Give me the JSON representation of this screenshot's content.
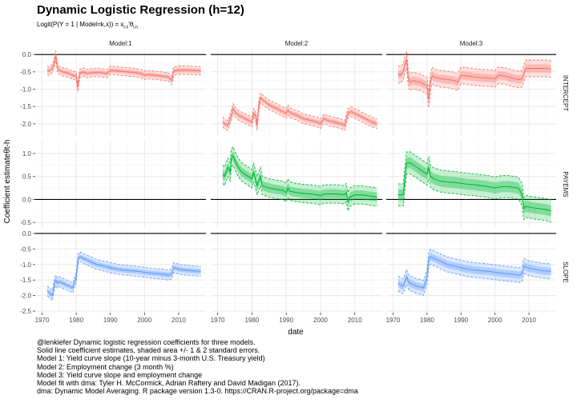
{
  "title": "Dynamic Logistic Regression (h=12)",
  "subtitle": "Logit(P(Y = 1 | Model=k,x)) = xt-h'θt-h",
  "caption": [
    "@lenkiefer Dynamic logistic regression coefficients for three models.",
    "Solid line coefficient estimates, shaded area +/- 1 & 2 standard errors.",
    "Model 1: Yield curve slope (10-year minus 3-month U.S. Treasury yield)",
    "Model 2: Employment change (3 month %)",
    "Model 3: Yield curve slope and employment change",
    "Model fit with dma: Tyler H. McCormick, Adrian Raftery and David Madigan (2017).",
    "dma: Dynamic Model Averaging. R package version 1.3-0. https://CRAN.R-project.org/package=dma"
  ],
  "chart_data": {
    "type": "line",
    "xlabel": "date",
    "ylabel": "Coefficient estimateθt-h",
    "columns": [
      "Model:1",
      "Model:2",
      "Model:3"
    ],
    "rows": [
      "INTERCEPT",
      "PAYEMS",
      "SLOPE"
    ],
    "xlim": [
      1968,
      2018
    ],
    "xticks": [
      1970,
      1980,
      1990,
      2000,
      2010
    ],
    "grid": true,
    "row_axes": [
      {
        "ylim": [
          -2.35,
          0.12
        ],
        "ticks": [
          0.0,
          -0.5,
          -1.0,
          -1.5,
          -2.0
        ],
        "labels": [
          "0.0",
          "-0.5",
          "-1.0",
          "-1.5",
          "-2.0"
        ],
        "zero_line": true
      },
      {
        "ylim": [
          -0.62,
          1.28
        ],
        "ticks": [
          1.0,
          0.5,
          0.0,
          -0.5
        ],
        "labels": [
          "1.0",
          "0.5",
          "0.0",
          "-0.5"
        ],
        "zero_line": true
      },
      {
        "ylim": [
          -2.55,
          0.05
        ],
        "ticks": [
          0.0,
          -0.5,
          -1.0,
          -1.5,
          -2.0,
          -2.5
        ],
        "labels": [
          "0.0",
          "-0.5",
          "-1.0",
          "-1.5",
          "-2.0",
          "-2.5"
        ],
        "zero_line": true
      }
    ],
    "colors": {
      "INTERCEPT": "#f8766d",
      "PAYEMS": "#00ba38",
      "SLOPE": "#619cff"
    },
    "series": [
      {
        "model": "Model:1",
        "row": "INTERCEPT",
        "se": 0.06,
        "points": [
          [
            1971.5,
            -0.45
          ],
          [
            1972,
            -0.48
          ],
          [
            1973,
            -0.4
          ],
          [
            1973.7,
            -0.2
          ],
          [
            1974,
            0.0
          ],
          [
            1974.5,
            -0.38
          ],
          [
            1975,
            -0.45
          ],
          [
            1976,
            -0.5
          ],
          [
            1977,
            -0.52
          ],
          [
            1978,
            -0.55
          ],
          [
            1979,
            -0.6
          ],
          [
            1980,
            -0.62
          ],
          [
            1980.5,
            -0.95
          ],
          [
            1981,
            -0.55
          ],
          [
            1982,
            -0.5
          ],
          [
            1983,
            -0.55
          ],
          [
            1985,
            -0.52
          ],
          [
            1987,
            -0.52
          ],
          [
            1989,
            -0.55
          ],
          [
            1990,
            -0.45
          ],
          [
            1992,
            -0.47
          ],
          [
            1995,
            -0.5
          ],
          [
            1997,
            -0.52
          ],
          [
            1999,
            -0.55
          ],
          [
            2000,
            -0.6
          ],
          [
            2001,
            -0.58
          ],
          [
            2003,
            -0.6
          ],
          [
            2005,
            -0.62
          ],
          [
            2007,
            -0.65
          ],
          [
            2008,
            -0.75
          ],
          [
            2008.5,
            -0.48
          ],
          [
            2010,
            -0.45
          ],
          [
            2012,
            -0.45
          ],
          [
            2014,
            -0.46
          ],
          [
            2016.5,
            -0.47
          ]
        ]
      },
      {
        "model": "Model:2",
        "row": "INTERCEPT",
        "se": 0.07,
        "points": [
          [
            1971.5,
            -1.95
          ],
          [
            1972,
            -2.0
          ],
          [
            1973,
            -2.05
          ],
          [
            1974,
            -1.75
          ],
          [
            1974.5,
            -1.55
          ],
          [
            1975,
            -1.65
          ],
          [
            1976,
            -1.75
          ],
          [
            1977,
            -1.8
          ],
          [
            1978,
            -1.85
          ],
          [
            1979,
            -1.9
          ],
          [
            1980,
            -1.95
          ],
          [
            1980.5,
            -1.7
          ],
          [
            1981,
            -1.75
          ],
          [
            1981.5,
            -2.05
          ],
          [
            1982,
            -1.5
          ],
          [
            1982.5,
            -1.25
          ],
          [
            1983,
            -1.3
          ],
          [
            1985,
            -1.45
          ],
          [
            1987,
            -1.55
          ],
          [
            1989,
            -1.65
          ],
          [
            1990,
            -1.7
          ],
          [
            1990.5,
            -1.6
          ],
          [
            1991,
            -1.68
          ],
          [
            1993,
            -1.75
          ],
          [
            1995,
            -1.85
          ],
          [
            1997,
            -1.9
          ],
          [
            1999,
            -1.95
          ],
          [
            2000,
            -2.0
          ],
          [
            2001,
            -1.85
          ],
          [
            2002,
            -1.9
          ],
          [
            2004,
            -1.95
          ],
          [
            2006,
            -2.0
          ],
          [
            2007,
            -2.05
          ],
          [
            2008,
            -1.7
          ],
          [
            2009,
            -1.65
          ],
          [
            2011,
            -1.75
          ],
          [
            2013,
            -1.85
          ],
          [
            2015,
            -1.95
          ],
          [
            2016.5,
            -2.0
          ]
        ]
      },
      {
        "model": "Model:3",
        "row": "INTERCEPT",
        "se": 0.12,
        "points": [
          [
            1971.5,
            -0.55
          ],
          [
            1972,
            -0.6
          ],
          [
            1973,
            -0.5
          ],
          [
            1973.7,
            -0.2
          ],
          [
            1974,
            -0.15
          ],
          [
            1974.5,
            -0.7
          ],
          [
            1975,
            -0.8
          ],
          [
            1976,
            -0.75
          ],
          [
            1977,
            -0.78
          ],
          [
            1978,
            -0.8
          ],
          [
            1979,
            -0.85
          ],
          [
            1980,
            -0.9
          ],
          [
            1980.5,
            -1.3
          ],
          [
            1981,
            -0.8
          ],
          [
            1981.5,
            -0.6
          ],
          [
            1982,
            -0.65
          ],
          [
            1984,
            -0.7
          ],
          [
            1986,
            -0.72
          ],
          [
            1988,
            -0.75
          ],
          [
            1989,
            -0.8
          ],
          [
            1990,
            -0.6
          ],
          [
            1992,
            -0.62
          ],
          [
            1994,
            -0.65
          ],
          [
            1996,
            -0.67
          ],
          [
            1998,
            -0.68
          ],
          [
            2000,
            -0.7
          ],
          [
            2001,
            -0.6
          ],
          [
            2003,
            -0.62
          ],
          [
            2005,
            -0.68
          ],
          [
            2007,
            -0.72
          ],
          [
            2008,
            -0.7
          ],
          [
            2009,
            -0.4
          ],
          [
            2011,
            -0.4
          ],
          [
            2013,
            -0.4
          ],
          [
            2015,
            -0.4
          ],
          [
            2016.5,
            -0.42
          ]
        ]
      },
      {
        "model": "Model:2",
        "row": "PAYEMS",
        "se": 0.1,
        "points": [
          [
            1971.5,
            0.55
          ],
          [
            1972,
            0.5
          ],
          [
            1973,
            0.7
          ],
          [
            1973.7,
            0.6
          ],
          [
            1974,
            0.9
          ],
          [
            1974.5,
            0.95
          ],
          [
            1975,
            0.85
          ],
          [
            1976,
            0.7
          ],
          [
            1977,
            0.6
          ],
          [
            1978,
            0.55
          ],
          [
            1979,
            0.5
          ],
          [
            1980,
            0.45
          ],
          [
            1980.5,
            0.6
          ],
          [
            1981,
            0.45
          ],
          [
            1981.5,
            0.3
          ],
          [
            1982,
            0.4
          ],
          [
            1982.5,
            0.5
          ],
          [
            1983,
            0.3
          ],
          [
            1985,
            0.25
          ],
          [
            1987,
            0.22
          ],
          [
            1989,
            0.2
          ],
          [
            1990,
            0.15
          ],
          [
            1990.5,
            0.25
          ],
          [
            1991,
            0.18
          ],
          [
            1993,
            0.15
          ],
          [
            1995,
            0.13
          ],
          [
            1997,
            0.12
          ],
          [
            1999,
            0.1
          ],
          [
            2000,
            0.08
          ],
          [
            2001,
            0.12
          ],
          [
            2003,
            0.12
          ],
          [
            2005,
            0.12
          ],
          [
            2007,
            0.1
          ],
          [
            2007.5,
            0.15
          ],
          [
            2008,
            -0.05
          ],
          [
            2008.5,
            0.05
          ],
          [
            2010,
            0.1
          ],
          [
            2012,
            0.1
          ],
          [
            2014,
            0.08
          ],
          [
            2016.5,
            0.05
          ]
        ]
      },
      {
        "model": "Model:3",
        "row": "PAYEMS",
        "se": 0.12,
        "points": [
          [
            1971.5,
            0.1
          ],
          [
            1972,
            0.1
          ],
          [
            1973,
            0.1
          ],
          [
            1973.7,
            0.6
          ],
          [
            1974,
            0.8
          ],
          [
            1975,
            0.8
          ],
          [
            1976,
            0.75
          ],
          [
            1977,
            0.7
          ],
          [
            1978,
            0.65
          ],
          [
            1979,
            0.6
          ],
          [
            1980,
            0.55
          ],
          [
            1980.5,
            0.7
          ],
          [
            1981,
            0.5
          ],
          [
            1982,
            0.45
          ],
          [
            1984,
            0.4
          ],
          [
            1986,
            0.38
          ],
          [
            1988,
            0.37
          ],
          [
            1990,
            0.35
          ],
          [
            1992,
            0.33
          ],
          [
            1994,
            0.32
          ],
          [
            1996,
            0.3
          ],
          [
            1998,
            0.28
          ],
          [
            2000,
            0.25
          ],
          [
            2002,
            0.28
          ],
          [
            2004,
            0.28
          ],
          [
            2006,
            0.26
          ],
          [
            2007,
            0.24
          ],
          [
            2008,
            0.1
          ],
          [
            2008.5,
            -0.2
          ],
          [
            2009,
            -0.15
          ],
          [
            2011,
            -0.18
          ],
          [
            2013,
            -0.2
          ],
          [
            2015,
            -0.22
          ],
          [
            2016.5,
            -0.25
          ]
        ]
      },
      {
        "model": "Model:1",
        "row": "SLOPE",
        "se": 0.08,
        "points": [
          [
            1971.5,
            -1.85
          ],
          [
            1972,
            -1.9
          ],
          [
            1973,
            -2.0
          ],
          [
            1973.7,
            -1.6
          ],
          [
            1974,
            -1.5
          ],
          [
            1974.5,
            -1.6
          ],
          [
            1975,
            -1.55
          ],
          [
            1976,
            -1.6
          ],
          [
            1977,
            -1.65
          ],
          [
            1978,
            -1.7
          ],
          [
            1979,
            -1.75
          ],
          [
            1980,
            -1.4
          ],
          [
            1980.5,
            -0.85
          ],
          [
            1981,
            -0.75
          ],
          [
            1982,
            -0.8
          ],
          [
            1984,
            -0.9
          ],
          [
            1986,
            -1.0
          ],
          [
            1988,
            -1.05
          ],
          [
            1990,
            -1.1
          ],
          [
            1992,
            -1.15
          ],
          [
            1994,
            -1.18
          ],
          [
            1996,
            -1.2
          ],
          [
            1998,
            -1.22
          ],
          [
            2000,
            -1.25
          ],
          [
            2002,
            -1.28
          ],
          [
            2004,
            -1.3
          ],
          [
            2006,
            -1.32
          ],
          [
            2007,
            -1.35
          ],
          [
            2008,
            -1.3
          ],
          [
            2008.5,
            -1.1
          ],
          [
            2010,
            -1.15
          ],
          [
            2012,
            -1.18
          ],
          [
            2014,
            -1.2
          ],
          [
            2016.5,
            -1.22
          ]
        ]
      },
      {
        "model": "Model:3",
        "row": "SLOPE",
        "se": 0.12,
        "points": [
          [
            1971.5,
            -1.6
          ],
          [
            1972,
            -1.65
          ],
          [
            1973,
            -1.7
          ],
          [
            1973.7,
            -1.5
          ],
          [
            1974,
            -1.4
          ],
          [
            1974.5,
            -1.55
          ],
          [
            1975,
            -1.6
          ],
          [
            1976,
            -1.65
          ],
          [
            1977,
            -1.7
          ],
          [
            1978,
            -1.72
          ],
          [
            1979,
            -1.75
          ],
          [
            1980,
            -1.4
          ],
          [
            1980.5,
            -0.85
          ],
          [
            1981,
            -0.75
          ],
          [
            1982,
            -0.8
          ],
          [
            1984,
            -0.9
          ],
          [
            1986,
            -1.0
          ],
          [
            1988,
            -1.05
          ],
          [
            1990,
            -1.1
          ],
          [
            1992,
            -1.15
          ],
          [
            1994,
            -1.18
          ],
          [
            1996,
            -1.2
          ],
          [
            1998,
            -1.22
          ],
          [
            2000,
            -1.25
          ],
          [
            2002,
            -1.28
          ],
          [
            2004,
            -1.3
          ],
          [
            2006,
            -1.32
          ],
          [
            2007,
            -1.35
          ],
          [
            2008,
            -1.3
          ],
          [
            2008.5,
            -1.05
          ],
          [
            2010,
            -1.12
          ],
          [
            2012,
            -1.16
          ],
          [
            2014,
            -1.2
          ],
          [
            2016.5,
            -1.22
          ]
        ]
      }
    ]
  }
}
